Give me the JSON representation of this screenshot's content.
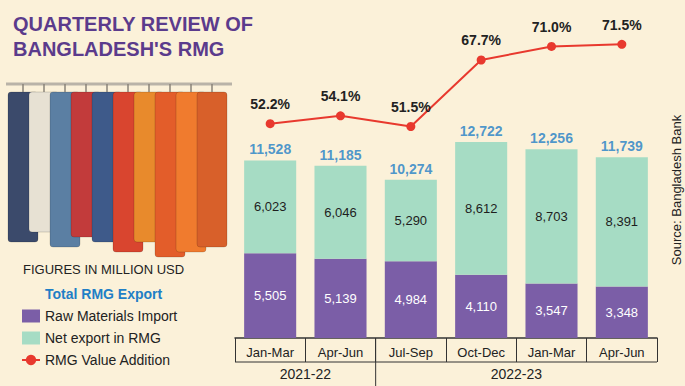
{
  "chart_data": {
    "type": "bar",
    "title": "QUARTERLY REVIEW OF BANGLADESH'S RMG",
    "subtitle": "FIGURES IN MILLION USD",
    "source": "Source: Bangladesh Bank",
    "categories": [
      "Jan-Mar",
      "Apr-Jun",
      "Jul-Sep",
      "Oct-Dec",
      "Jan-Mar",
      "Apr-Jun"
    ],
    "groups": [
      {
        "label": "2021-22",
        "count": 2
      },
      {
        "label": "2022-23",
        "count": 4
      }
    ],
    "stacked": true,
    "data_labels": true,
    "grid": false,
    "tick_labels": "x",
    "legend": "bottom-left",
    "ylim": [
      0,
      20000
    ],
    "y2lim": [
      0,
      75
    ],
    "series": [
      {
        "name": "Total RMG Export",
        "type": "scatter",
        "marker": "none",
        "color": "#1f7fc6",
        "values": [
          11528,
          11185,
          10274,
          12722,
          12256,
          11739
        ],
        "value_labels": [
          "11,528",
          "11,185",
          "10,274",
          "12,722",
          "12,256",
          "11,739"
        ]
      },
      {
        "name": "Raw Materials Import",
        "type": "bar",
        "color": "#7b5ea7",
        "values": [
          5505,
          5139,
          4984,
          4110,
          3547,
          3348
        ],
        "value_labels": [
          "5,505",
          "5,139",
          "4,984",
          "4,110",
          "3,547",
          "3,348"
        ]
      },
      {
        "name": "Net export in RMG",
        "type": "bar",
        "color": "#a6dcc4",
        "values": [
          6023,
          6046,
          5290,
          8612,
          8703,
          8391
        ],
        "value_labels": [
          "6,023",
          "6,046",
          "5,290",
          "8,612",
          "8,703",
          "8,391"
        ]
      },
      {
        "name": "RMG Value Addition",
        "type": "line",
        "axis": "y2",
        "marker": "circle",
        "line_style": "solid",
        "color": "#e8392e",
        "values": [
          52.2,
          54.1,
          51.5,
          67.7,
          71.0,
          71.5
        ],
        "value_labels": [
          "52.2%",
          "54.1%",
          "51.5%",
          "67.7%",
          "71.0%",
          "71.5%"
        ]
      }
    ]
  }
}
